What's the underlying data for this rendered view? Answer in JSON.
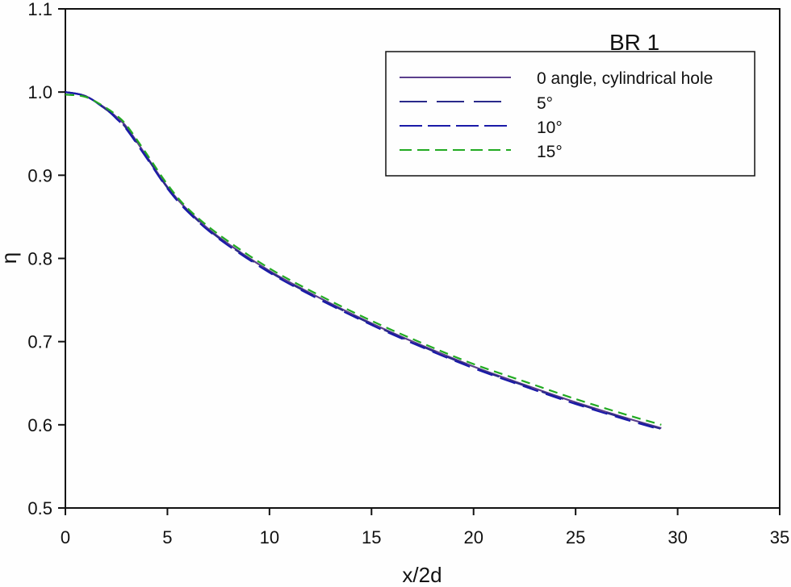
{
  "chart_data": {
    "type": "line",
    "title": "BR 1",
    "xlabel": "x/2d",
    "ylabel": "η",
    "xlim": [
      0,
      35
    ],
    "ylim": [
      0.5,
      1.1
    ],
    "xticks": [
      "0",
      "5",
      "10",
      "15",
      "20",
      "25",
      "30",
      "35"
    ],
    "yticks": [
      "0.5",
      "0.6",
      "0.7",
      "0.8",
      "0.9",
      "1.0",
      "1.1"
    ],
    "grid": false,
    "legend_position": "upper right",
    "x": [
      0,
      1,
      2,
      2.5,
      3,
      4,
      5,
      6,
      7.5,
      10,
      12.5,
      15,
      17.5,
      20,
      22.5,
      25,
      27.5,
      29.2
    ],
    "series": [
      {
        "name": "0 angle, cylindrical hole",
        "color": "#5b3f8c",
        "dash": "solid",
        "values": [
          1.0,
          0.995,
          0.98,
          0.97,
          0.958,
          0.922,
          0.886,
          0.858,
          0.826,
          0.785,
          0.752,
          0.722,
          0.695,
          0.67,
          0.648,
          0.627,
          0.608,
          0.596
        ]
      },
      {
        "name": "5°",
        "color": "#2a2a8a",
        "dash": "long",
        "values": [
          1.0,
          0.995,
          0.979,
          0.969,
          0.956,
          0.921,
          0.885,
          0.857,
          0.825,
          0.784,
          0.751,
          0.721,
          0.694,
          0.669,
          0.647,
          0.626,
          0.607,
          0.595
        ]
      },
      {
        "name": "10°",
        "color": "#1a1aa8",
        "dash": "medium",
        "values": [
          1.0,
          0.995,
          0.979,
          0.968,
          0.955,
          0.92,
          0.884,
          0.856,
          0.824,
          0.783,
          0.75,
          0.72,
          0.693,
          0.668,
          0.646,
          0.625,
          0.606,
          0.594
        ]
      },
      {
        "name": "15°",
        "color": "#22aa22",
        "dash": "short",
        "values": [
          0.997,
          0.994,
          0.981,
          0.972,
          0.96,
          0.925,
          0.889,
          0.86,
          0.829,
          0.788,
          0.755,
          0.725,
          0.698,
          0.673,
          0.652,
          0.631,
          0.612,
          0.6
        ]
      }
    ]
  },
  "legend": {
    "items": [
      {
        "label": "0 angle, cylindrical hole"
      },
      {
        "label": "5°"
      },
      {
        "label": "10°"
      },
      {
        "label": "15°"
      }
    ]
  }
}
